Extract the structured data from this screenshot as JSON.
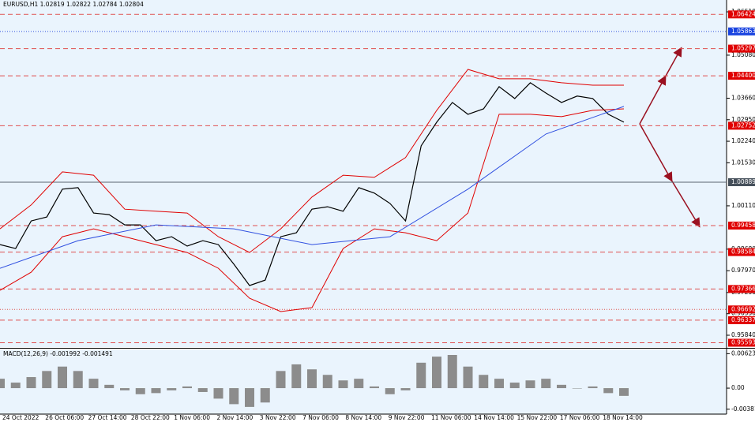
{
  "chart_data": {
    "type": "line",
    "title": "EURUSD,H1  1.02819 1.02822 1.02784 1.02804",
    "ylim": [
      0.9545,
      1.069
    ],
    "yticks": [
      {
        "value": 1.0651,
        "label": "1.06510"
      },
      {
        "value": 1.0508,
        "label": "1.05080"
      },
      {
        "value": 1.0366,
        "label": "1.03660"
      },
      {
        "value": 1.0295,
        "label": "1.02950"
      },
      {
        "value": 1.0224,
        "label": "1.02240"
      },
      {
        "value": 1.0153,
        "label": "1.01530"
      },
      {
        "value": 1.0011,
        "label": "1.00110"
      },
      {
        "value": 0.9868,
        "label": "0.98680"
      },
      {
        "value": 0.9797,
        "label": "0.97970"
      },
      {
        "value": 0.9725,
        "label": "0.97250"
      },
      {
        "value": 0.9655,
        "label": "0.96550"
      },
      {
        "value": 0.9584,
        "label": "0.95840"
      }
    ],
    "levels": [
      {
        "value": 1.06424,
        "style": "red-dash"
      },
      {
        "value": 1.05863,
        "style": "blue-dot"
      },
      {
        "value": 1.05297,
        "style": "red-dash"
      },
      {
        "value": 1.044,
        "label": "1.04400",
        "style": "red-dash"
      },
      {
        "value": 1.02752,
        "style": "red-dash"
      },
      {
        "value": 1.00889,
        "style": "gray-solid"
      },
      {
        "value": 0.99458,
        "style": "red-dash"
      },
      {
        "value": 0.98584,
        "style": "red-dash"
      },
      {
        "value": 0.97366,
        "style": "red-dash"
      },
      {
        "value": 0.96692,
        "style": "red-dot"
      },
      {
        "value": 0.96337,
        "style": "red-dash"
      },
      {
        "value": 0.95593,
        "style": "red-dash"
      }
    ],
    "x_labels": [
      "24 Oct 2022",
      "26 Oct 06:00",
      "27 Oct 14:00",
      "28 Oct 22:00",
      "1 Nov 06:00",
      "2 Nov 14:00",
      "3 Nov 22:00",
      "7 Nov 06:00",
      "8 Nov 14:00",
      "9 Nov 22:00",
      "11 Nov 06:00",
      "14 Nov 14:00",
      "15 Nov 22:00",
      "17 Nov 06:00",
      "18 Nov 14:00"
    ],
    "series": [
      {
        "color": "#000000",
        "values": [
          0.9883,
          0.987,
          0.9961,
          0.9974,
          1.0066,
          1.0071,
          0.9987,
          0.9982,
          0.9948,
          0.9948,
          0.9896,
          0.9909,
          0.9878,
          0.9896,
          0.9883,
          0.9818,
          0.9748,
          0.9766,
          0.9909,
          0.9922,
          1.0,
          1.0008,
          0.9993,
          1.0071,
          1.0053,
          1.0019,
          0.9961,
          1.0209,
          1.0287,
          1.0352,
          1.0313,
          1.0331,
          1.0404,
          1.0365,
          1.0417,
          1.0383,
          1.0352,
          1.0373,
          1.0365,
          1.0313,
          1.0287
        ]
      },
      {
        "color": "#e00000",
        "values": [
          0.9935,
          1.0014,
          1.0123,
          1.0112,
          1.0,
          0.9993,
          0.9987,
          0.9909,
          0.9857,
          0.9935,
          1.004,
          1.0112,
          1.0105,
          1.017,
          1.0326,
          1.0461,
          1.043,
          1.043,
          1.0417,
          1.0409,
          1.0409
        ]
      },
      {
        "color": "#e00000",
        "values": [
          0.9732,
          0.9792,
          0.9909,
          0.9935,
          0.9909,
          0.9883,
          0.9857,
          0.9805,
          0.9706,
          0.9662,
          0.9675,
          0.987,
          0.9935,
          0.9922,
          0.9896,
          0.9987,
          1.0313,
          1.0313,
          1.0305,
          1.0326,
          1.0331
        ]
      },
      {
        "color": "#3050e0",
        "values": [
          0.9805,
          0.9896,
          0.9948,
          0.9935,
          0.9883,
          0.9909,
          1.0066,
          1.0248,
          1.0339
        ]
      }
    ],
    "macd": {
      "title": "MACD(12,26,9) -0.001992 -0.001491",
      "ylim": [
        -0.0047,
        0.007
      ],
      "yticks": [
        0.006236,
        {
          "value": 0,
          "label": "0.00"
        },
        -0.003816
      ],
      "color": "#8c8c8c",
      "values": [
        0.0017,
        0.001,
        0.002,
        0.0031,
        0.0039,
        0.0031,
        0.0017,
        0.0006,
        -0.0004,
        -0.0011,
        -0.0009,
        -0.0004,
        0.0003,
        -0.0007,
        -0.0019,
        -0.0029,
        -0.0034,
        -0.0026,
        0.0031,
        0.0043,
        0.0034,
        0.0024,
        0.0014,
        0.0017,
        0.0003,
        -0.0011,
        -0.0004,
        0.0046,
        0.0057,
        0.006,
        0.0039,
        0.0024,
        0.0017,
        0.001,
        0.0014,
        0.0017,
        0.0006,
        0,
        0.0003,
        -0.0009,
        -0.0014
      ]
    }
  }
}
